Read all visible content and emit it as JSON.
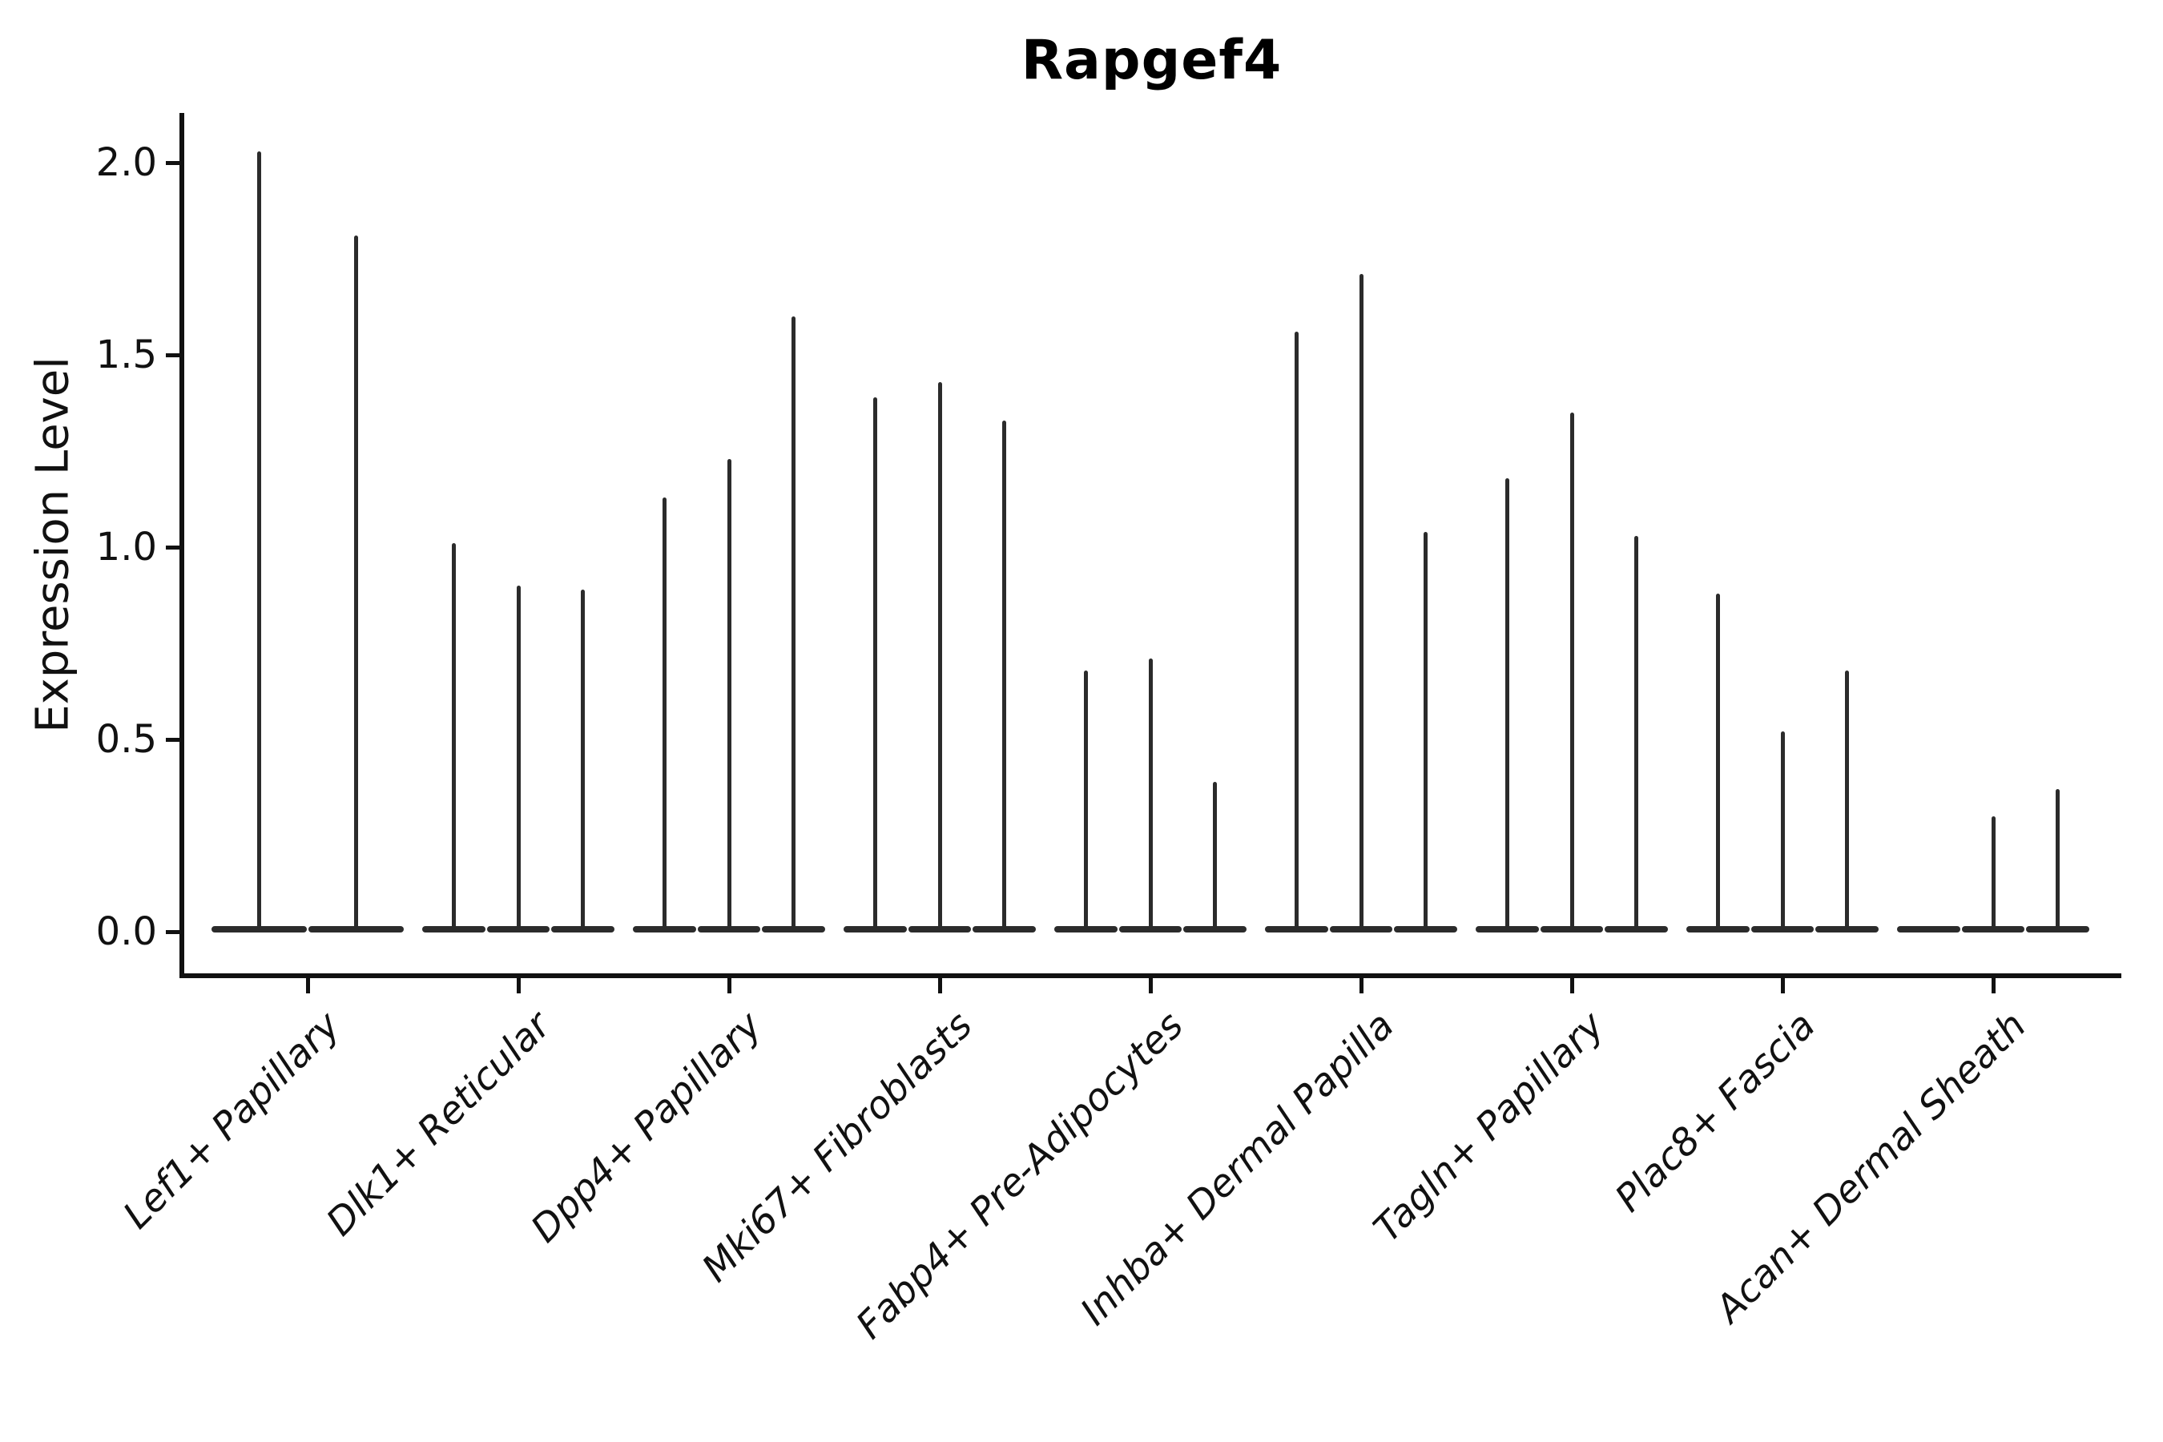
{
  "figure": {
    "title": "Rapgef4",
    "ylabel": "Expression Level"
  },
  "colors": {
    "stroke": "#2b2b2b",
    "axis": "#111111",
    "background": "#ffffff"
  },
  "chart_data": {
    "type": "violin",
    "title": "Rapgef4",
    "xlabel": "",
    "ylabel": "Expression Level",
    "ylim": [
      0,
      2.13
    ],
    "yticks": [
      0.0,
      0.5,
      1.0,
      1.5,
      2.0
    ],
    "grid": false,
    "legend": false,
    "shape_note": "zero-inflated violins: wide flat density mass at 0 with a thin spike rising to the maximum expression value",
    "categories": [
      "Lef1+ Papillary",
      "Dlk1+ Reticular",
      "Dpp4+ Papillary",
      "Mki67+ Fibroblasts",
      "Fabp4+ Pre-Adipocytes",
      "Inhba+ Dermal Papilla",
      "Tagln+ Papillary",
      "Plac8+ Fascia",
      "Acan+ Dermal Sheath"
    ],
    "groups": [
      {
        "category": "Lef1+ Papillary",
        "violins": [
          {
            "max_expression": 2.03
          },
          {
            "max_expression": 1.81
          }
        ]
      },
      {
        "category": "Dlk1+ Reticular",
        "violins": [
          {
            "max_expression": 1.01
          },
          {
            "max_expression": 0.9
          },
          {
            "max_expression": 0.89
          }
        ]
      },
      {
        "category": "Dpp4+ Papillary",
        "violins": [
          {
            "max_expression": 1.13
          },
          {
            "max_expression": 1.23
          },
          {
            "max_expression": 1.6
          }
        ]
      },
      {
        "category": "Mki67+ Fibroblasts",
        "violins": [
          {
            "max_expression": 1.39
          },
          {
            "max_expression": 1.43
          },
          {
            "max_expression": 1.33
          }
        ]
      },
      {
        "category": "Fabp4+ Pre-Adipocytes",
        "violins": [
          {
            "max_expression": 0.68
          },
          {
            "max_expression": 0.71
          },
          {
            "max_expression": 0.39
          }
        ]
      },
      {
        "category": "Inhba+ Dermal Papilla",
        "violins": [
          {
            "max_expression": 1.56
          },
          {
            "max_expression": 1.71
          },
          {
            "max_expression": 1.04
          }
        ]
      },
      {
        "category": "Tagln+ Papillary",
        "violins": [
          {
            "max_expression": 1.18
          },
          {
            "max_expression": 1.35
          },
          {
            "max_expression": 1.03
          }
        ]
      },
      {
        "category": "Plac8+ Fascia",
        "violins": [
          {
            "max_expression": 0.88
          },
          {
            "max_expression": 0.52
          },
          {
            "max_expression": 0.68
          }
        ]
      },
      {
        "category": "Acan+ Dermal Sheath",
        "violins": [
          {
            "max_expression": 0.0
          },
          {
            "max_expression": 0.3
          },
          {
            "max_expression": 0.37
          }
        ]
      }
    ]
  }
}
